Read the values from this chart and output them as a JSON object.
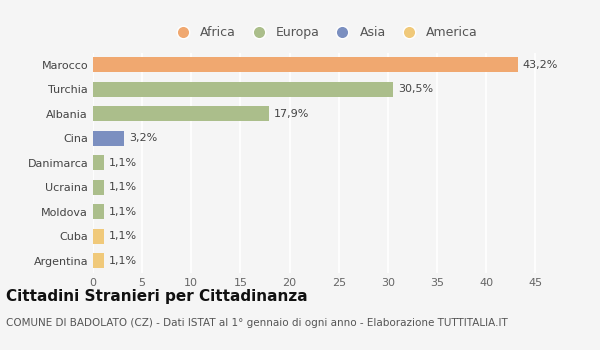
{
  "categories": [
    "Marocco",
    "Turchia",
    "Albania",
    "Cina",
    "Danimarca",
    "Ucraina",
    "Moldova",
    "Cuba",
    "Argentina"
  ],
  "values": [
    43.2,
    30.5,
    17.9,
    3.2,
    1.1,
    1.1,
    1.1,
    1.1,
    1.1
  ],
  "labels": [
    "43,2%",
    "30,5%",
    "17,9%",
    "3,2%",
    "1,1%",
    "1,1%",
    "1,1%",
    "1,1%",
    "1,1%"
  ],
  "colors": [
    "#F0A870",
    "#ABBE8B",
    "#ABBE8B",
    "#7B8FC0",
    "#ABBE8B",
    "#ABBE8B",
    "#ABBE8B",
    "#F0C97A",
    "#F0C97A"
  ],
  "legend_entries": [
    {
      "label": "Africa",
      "color": "#F0A870"
    },
    {
      "label": "Europa",
      "color": "#ABBE8B"
    },
    {
      "label": "Asia",
      "color": "#7B8FC0"
    },
    {
      "label": "America",
      "color": "#F0C97A"
    }
  ],
  "xlim": [
    0,
    47
  ],
  "xticks": [
    0,
    5,
    10,
    15,
    20,
    25,
    30,
    35,
    40,
    45
  ],
  "title": "Cittadini Stranieri per Cittadinanza",
  "subtitle": "COMUNE DI BADOLATO (CZ) - Dati ISTAT al 1° gennaio di ogni anno - Elaborazione TUTTITALIA.IT",
  "bg_color": "#f5f5f5",
  "grid_color": "#ffffff",
  "bar_height": 0.6,
  "title_fontsize": 11,
  "subtitle_fontsize": 7.5,
  "label_fontsize": 8,
  "tick_fontsize": 8,
  "ytick_fontsize": 8,
  "legend_fontsize": 9
}
